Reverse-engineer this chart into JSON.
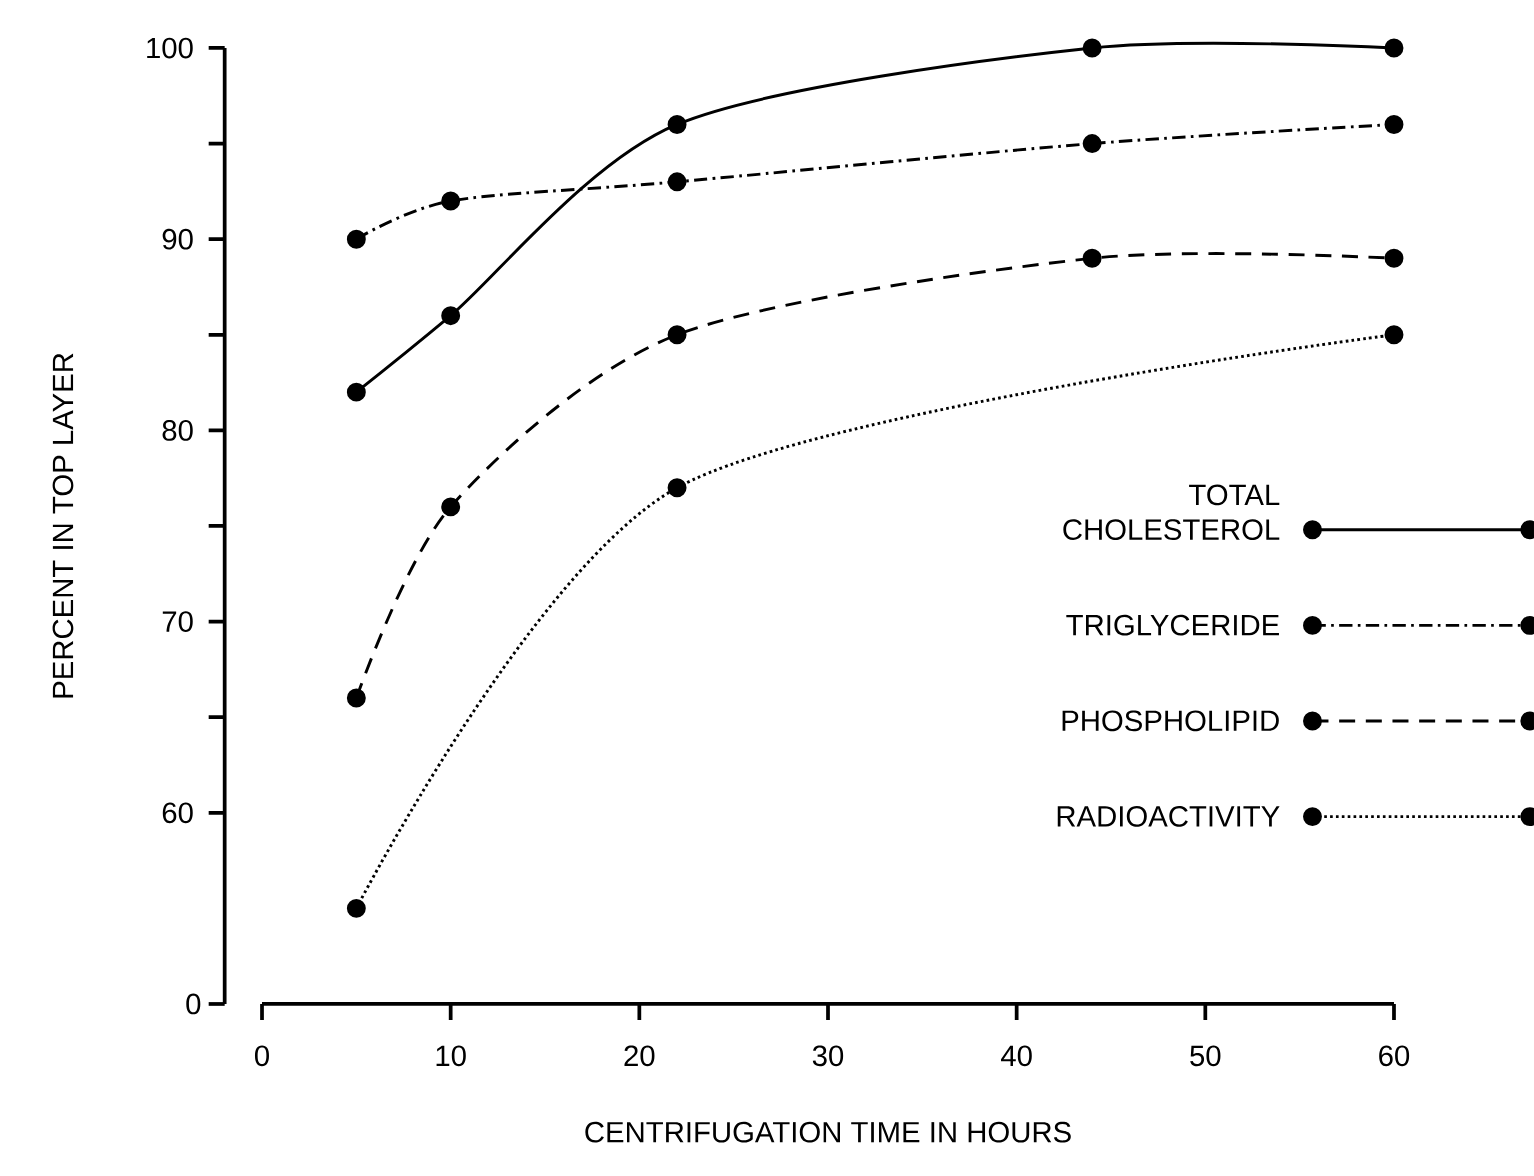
{
  "chart_data": {
    "type": "line",
    "xlabel": "CENTRIFUGATION TIME IN HOURS",
    "ylabel": "PERCENT IN TOP LAYER",
    "xlim": [
      0,
      60
    ],
    "xticks": [
      0,
      10,
      20,
      30,
      40,
      50,
      60
    ],
    "ylim": [
      50,
      100
    ],
    "yticks": [
      60,
      70,
      80,
      90,
      100
    ],
    "annotations": [
      "0"
    ],
    "marker": "circle",
    "legend": "right",
    "grid": false,
    "series": [
      {
        "name": "TOTAL CHOLESTEROL",
        "color": "#000000",
        "line_style": "solid",
        "x": [
          5,
          10,
          22,
          44,
          60
        ],
        "values": [
          82,
          86,
          96,
          100,
          100
        ]
      },
      {
        "name": "TRIGLYCERIDE",
        "color": "#000000",
        "line_style": "dashdot",
        "x": [
          5,
          10,
          22,
          44,
          60
        ],
        "values": [
          90,
          92,
          93,
          95,
          96
        ]
      },
      {
        "name": "PHOSPHOLIPID",
        "color": "#000000",
        "line_style": "dashed",
        "x": [
          5,
          10,
          22,
          44,
          60
        ],
        "values": [
          66,
          76,
          85,
          89,
          89
        ]
      },
      {
        "name": "RADIOACTIVITY",
        "color": "#000000",
        "line_style": "dotted",
        "x": [
          5,
          22,
          60
        ],
        "values": [
          55,
          77,
          85
        ]
      }
    ]
  }
}
